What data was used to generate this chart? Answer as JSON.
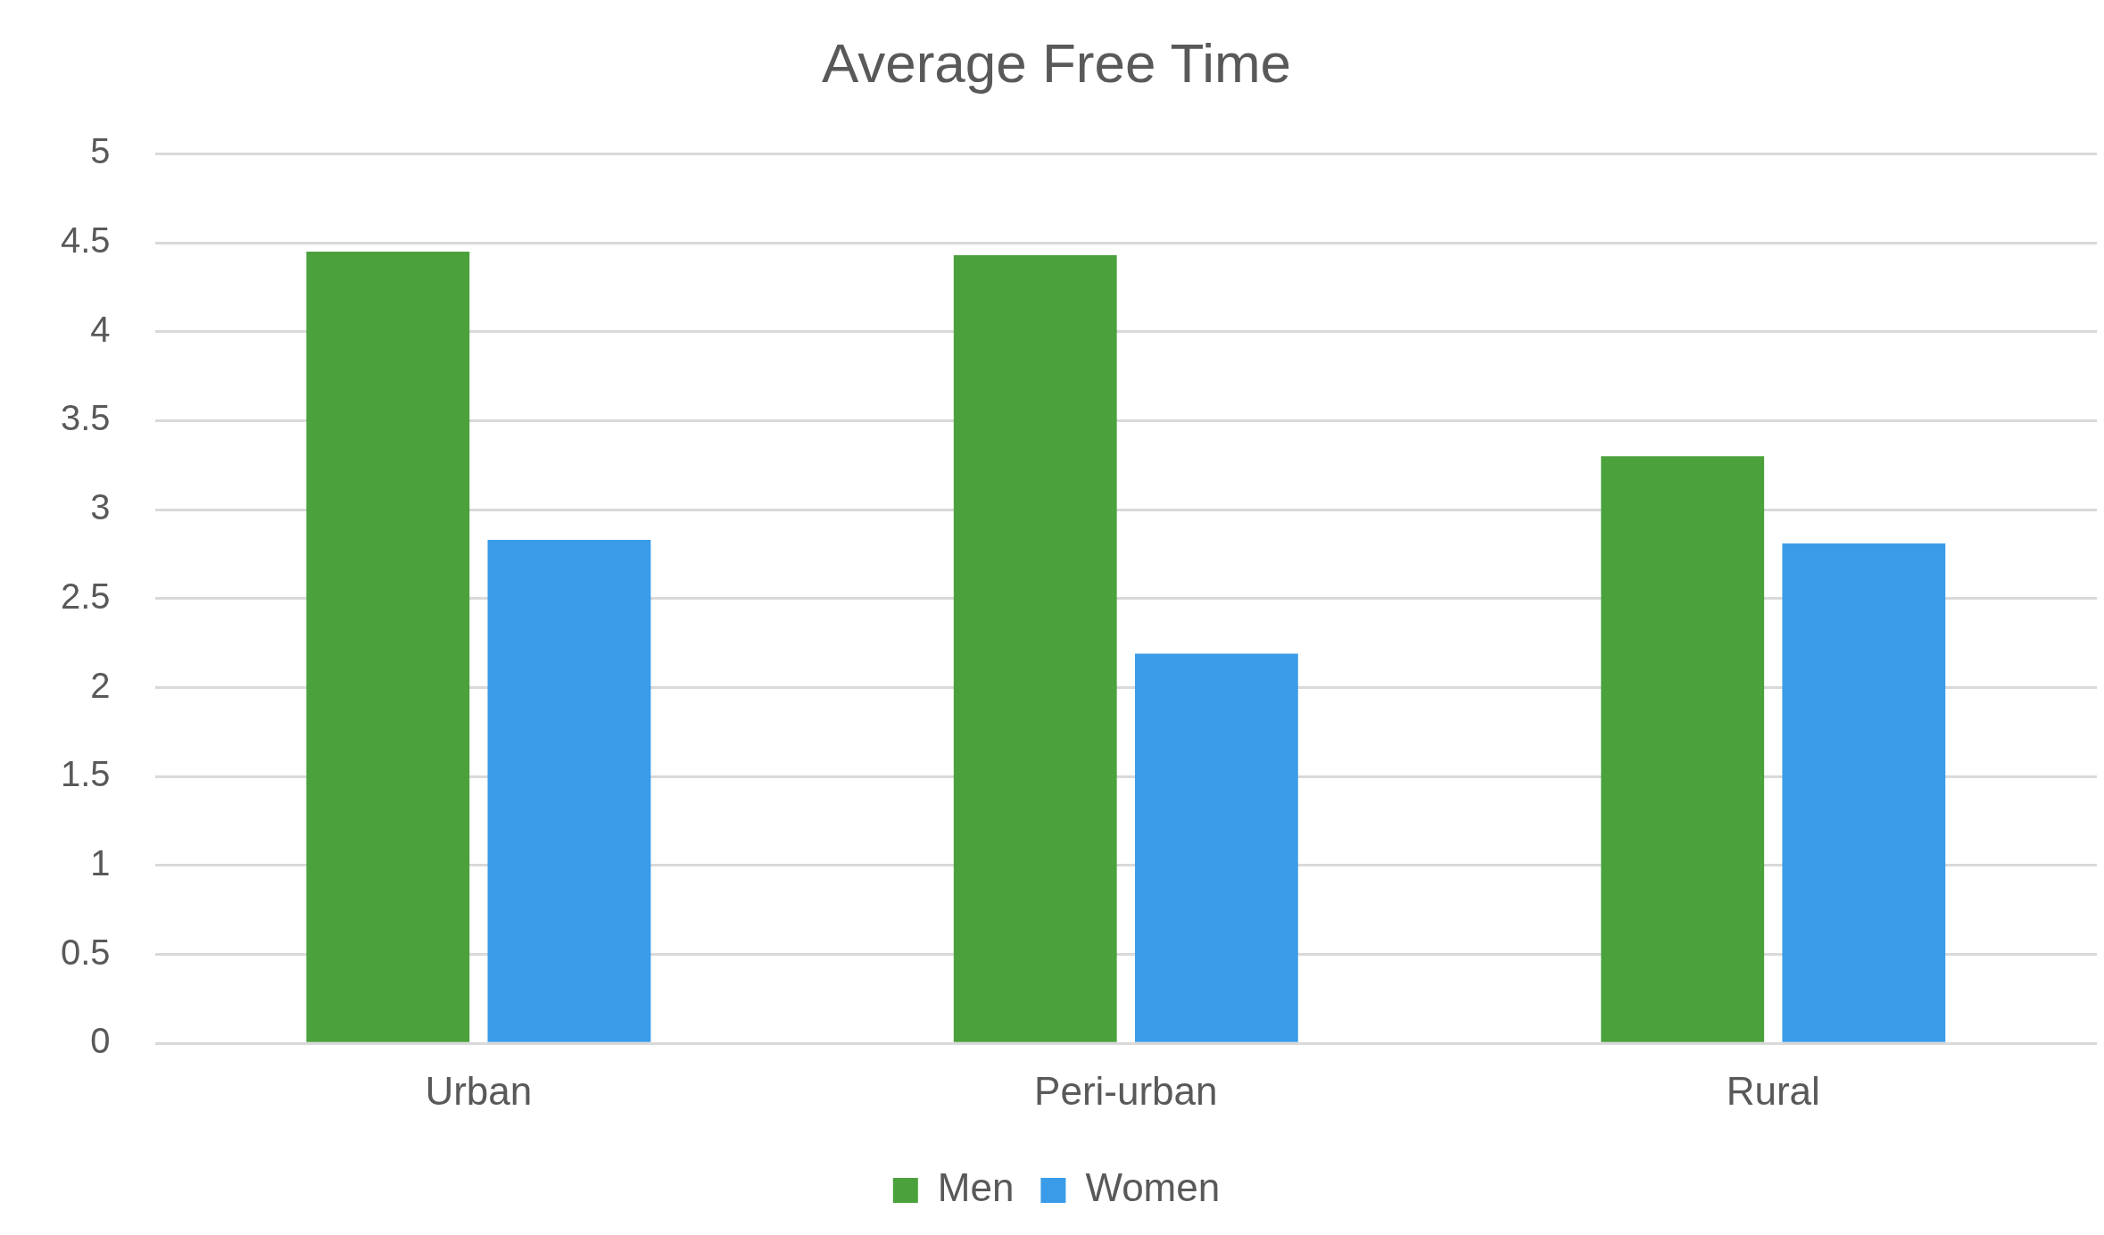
{
  "chart_data": {
    "type": "bar",
    "title": "Average Free Time",
    "categories": [
      "Urban",
      "Peri-urban",
      "Rural"
    ],
    "series": [
      {
        "name": "Men",
        "color": "#4ba23c",
        "values": [
          4.45,
          4.43,
          3.3
        ]
      },
      {
        "name": "Women",
        "color": "#3a9ce8",
        "values": [
          2.83,
          2.19,
          2.81
        ]
      }
    ],
    "ylim": [
      0,
      5
    ],
    "yticks": [
      0,
      0.5,
      1,
      1.5,
      2,
      2.5,
      3,
      3.5,
      4,
      4.5,
      5
    ],
    "grid": "y",
    "legend": "bottom"
  }
}
